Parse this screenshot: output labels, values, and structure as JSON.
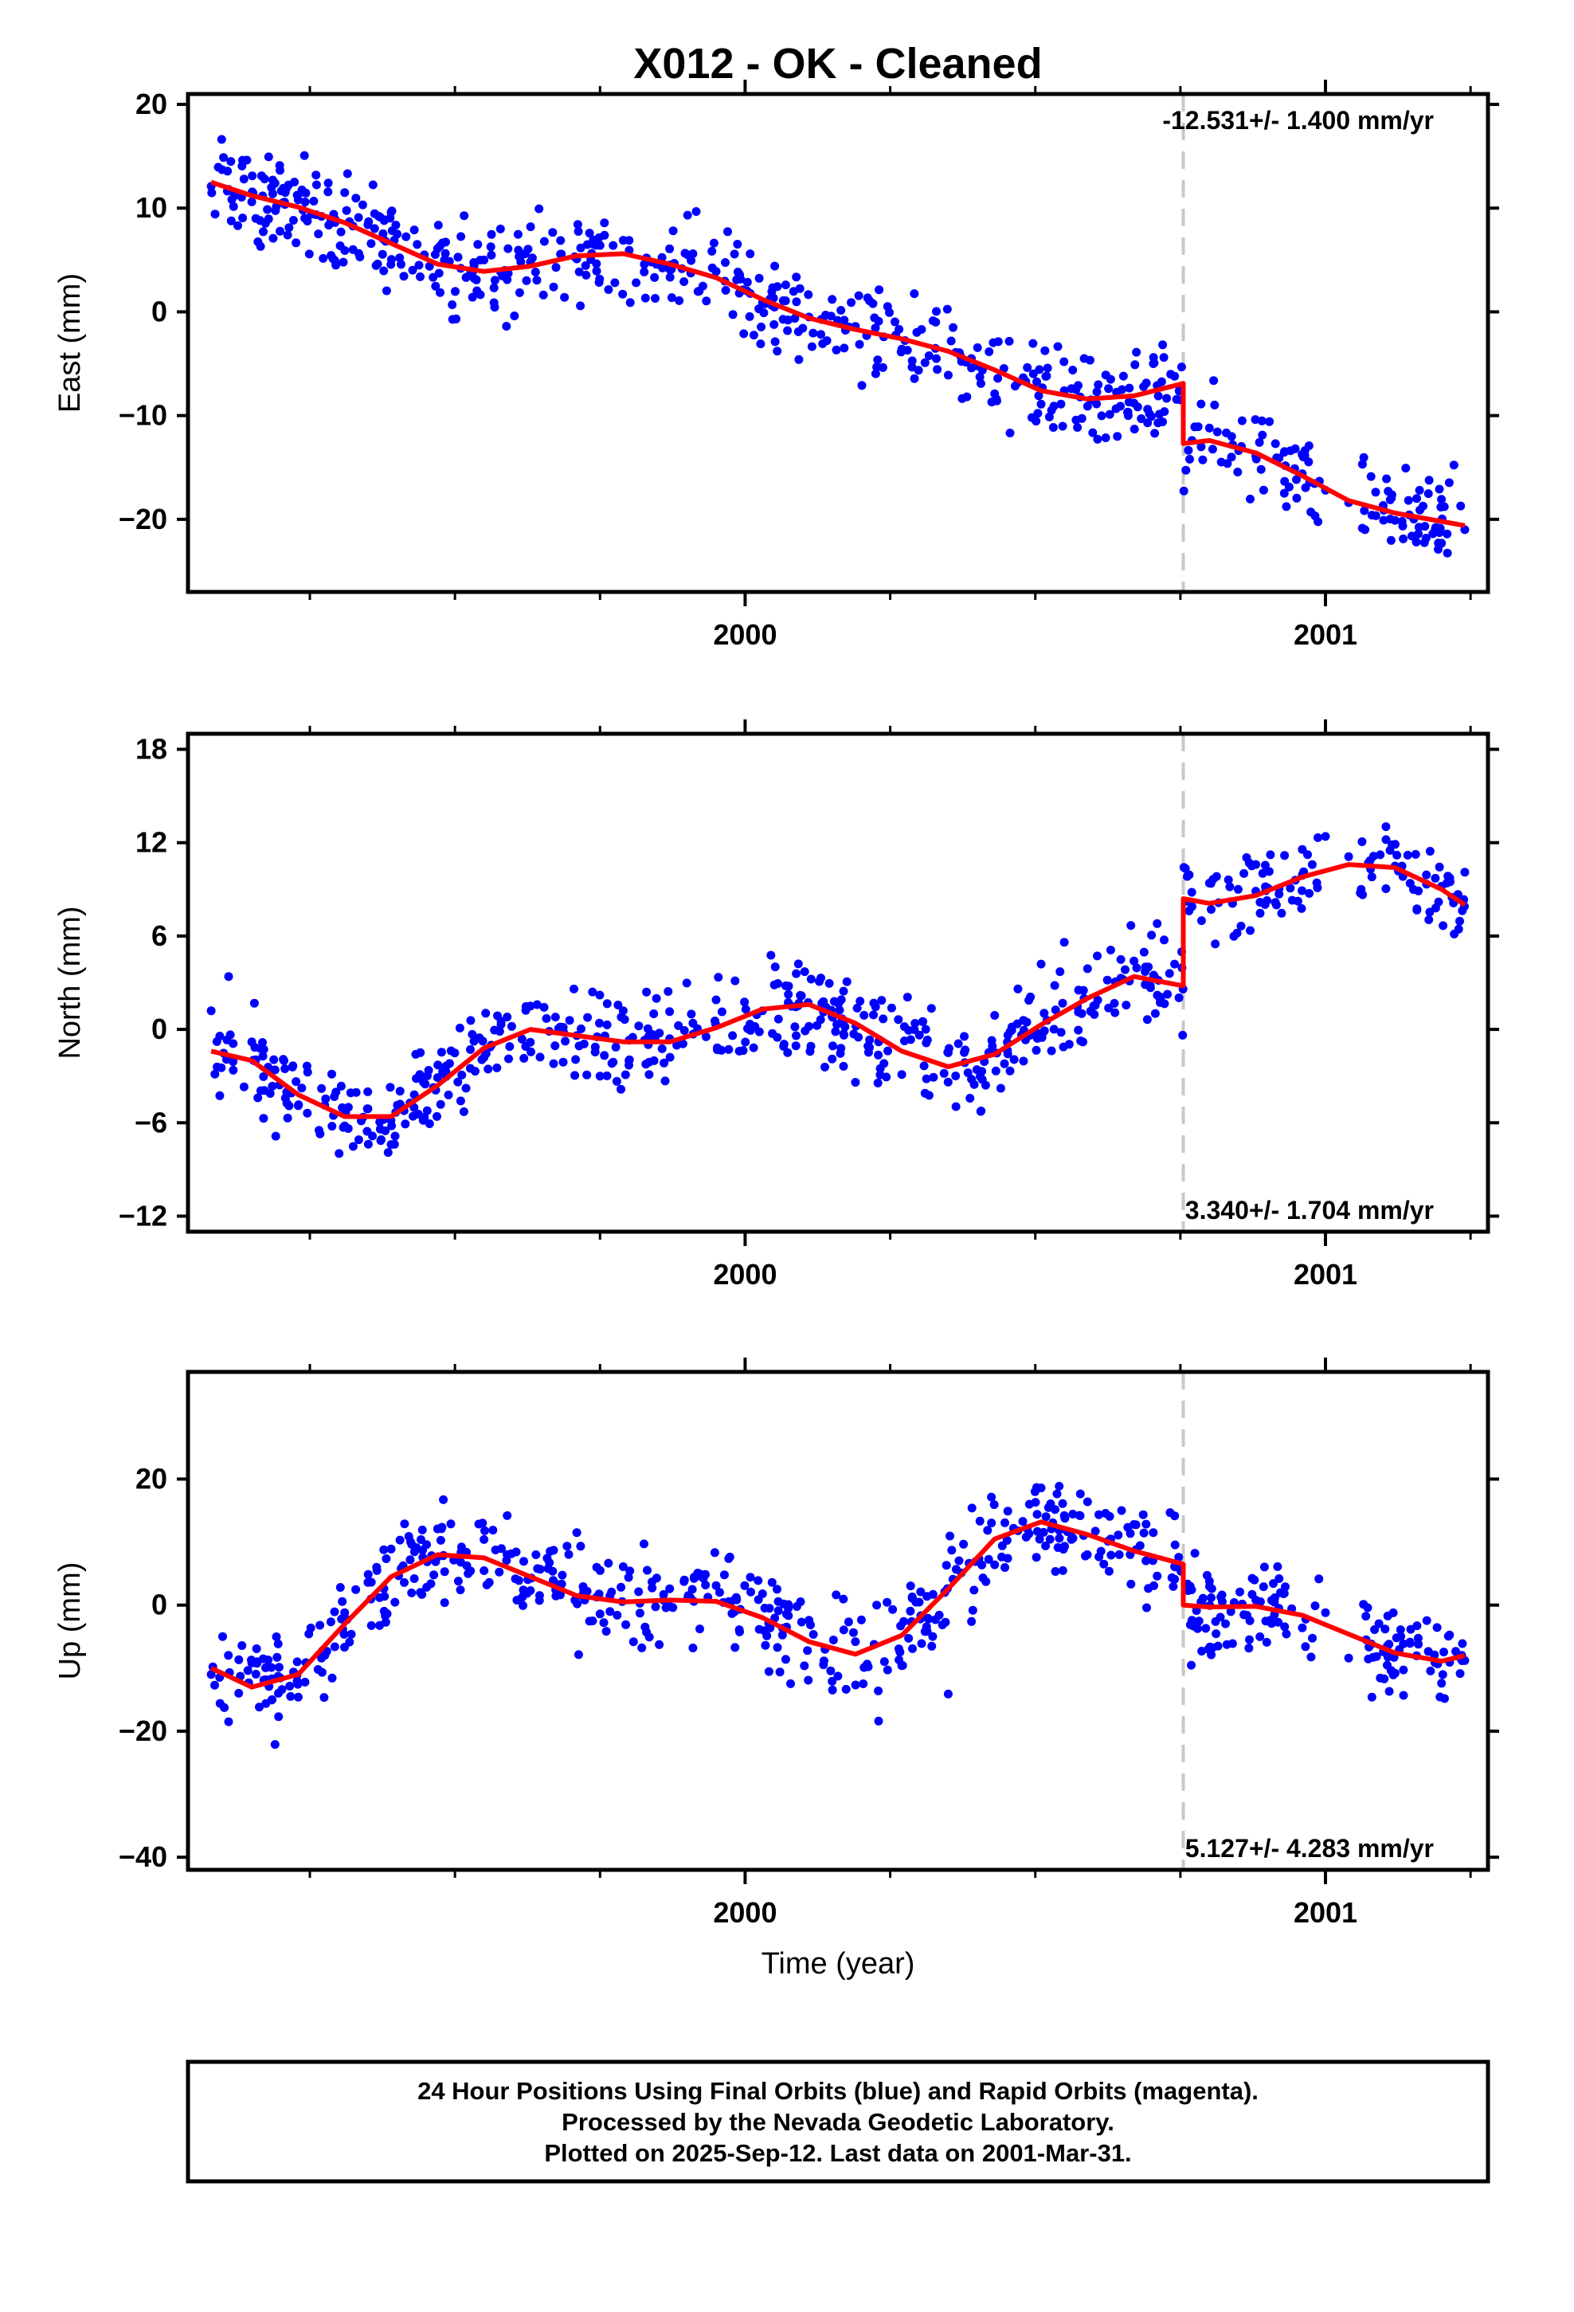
{
  "title": "X012  - OK - Cleaned",
  "chart_data": [
    {
      "type": "scatter",
      "panel": "east",
      "ylabel": "East (mm)",
      "xlabel": "",
      "xlim": [
        1999.04,
        2001.28
      ],
      "ylim": [
        -27,
        21
      ],
      "yticks": [
        20,
        10,
        0,
        -10,
        -20
      ],
      "ytick_labels": [
        "20",
        "10",
        "0",
        "−10",
        "−20"
      ],
      "xticks": [
        2000,
        2001
      ],
      "xtick_labels": [
        "2000",
        "2001"
      ],
      "rate_label": "-12.531+/- 1.400 mm/yr",
      "rate_position": "top-right",
      "offset_year": 2000.755,
      "series": [
        {
          "name": "Final Orbits",
          "color": "#0000ff",
          "style": "points",
          "x": [
            1999.08,
            1999.11,
            1999.15,
            1999.19,
            1999.23,
            1999.27,
            1999.31,
            1999.35,
            1999.39,
            1999.43,
            1999.47,
            1999.51,
            1999.55,
            1999.59,
            1999.63,
            1999.67,
            1999.71,
            1999.75,
            1999.79,
            1999.83,
            1999.87,
            1999.91,
            1999.95,
            1999.99,
            2000.03,
            2000.07,
            2000.11,
            2000.15,
            2000.19,
            2000.23,
            2000.27,
            2000.31,
            2000.35,
            2000.39,
            2000.43,
            2000.47,
            2000.51,
            2000.55,
            2000.59,
            2000.63,
            2000.67,
            2000.71,
            2000.74,
            2000.77,
            2000.8,
            2000.84,
            2000.88,
            2000.92,
            2000.96,
            2001.0,
            2001.04,
            2001.08,
            2001.12,
            2001.16,
            2001.2,
            2001.24
          ],
          "y": [
            12.1,
            11.8,
            10.6,
            12.4,
            10.8,
            9.2,
            11.5,
            8.4,
            9.6,
            7.9,
            6.1,
            4.2,
            5.0,
            3.1,
            4.8,
            2.4,
            5.1,
            6.4,
            6.9,
            5.2,
            4.1,
            5.6,
            3.9,
            1.8,
            0.9,
            2.6,
            -0.5,
            1.2,
            -1.4,
            -0.9,
            -3.6,
            -4.9,
            -6.1,
            -5.4,
            -7.9,
            -6.8,
            -8.9,
            -7.6,
            -9.1,
            -6.5,
            -8.8,
            -7.1,
            -6.2,
            -12.4,
            -11.2,
            -12.8,
            -13.9,
            -14.1,
            -15.6,
            -17.2,
            -18.4,
            -19.6,
            -20.1,
            -21.4,
            -22.3,
            -21.0
          ]
        },
        {
          "name": "Model",
          "color": "#ff0000",
          "style": "line",
          "x": [
            1999.08,
            1999.15,
            1999.23,
            1999.31,
            1999.39,
            1999.47,
            1999.55,
            1999.63,
            1999.71,
            1999.79,
            1999.87,
            1999.95,
            2000.03,
            2000.11,
            2000.19,
            2000.27,
            2000.35,
            2000.43,
            2000.51,
            2000.59,
            2000.67,
            2000.755,
            2000.755,
            2000.8,
            2000.88,
            2000.96,
            2001.04,
            2001.12,
            2001.2,
            2001.24
          ],
          "y": [
            12.5,
            11.2,
            10.1,
            8.6,
            6.6,
            4.6,
            3.9,
            4.4,
            5.4,
            5.6,
            4.6,
            3.3,
            1.2,
            -0.6,
            -1.7,
            -2.6,
            -3.8,
            -5.6,
            -7.6,
            -8.4,
            -8.1,
            -6.9,
            -12.7,
            -12.4,
            -13.6,
            -15.8,
            -18.2,
            -19.4,
            -20.2,
            -20.6
          ]
        }
      ]
    },
    {
      "type": "scatter",
      "panel": "north",
      "ylabel": "North (mm)",
      "xlabel": "",
      "xlim": [
        1999.04,
        2001.28
      ],
      "ylim": [
        -13,
        19
      ],
      "yticks": [
        18,
        12,
        6,
        0,
        -6,
        -12
      ],
      "ytick_labels": [
        "18",
        "12",
        "6",
        "0",
        "−6",
        "−12"
      ],
      "xticks": [
        2000,
        2001
      ],
      "xtick_labels": [
        "2000",
        "2001"
      ],
      "rate_label": "3.340+/- 1.704 mm/yr",
      "rate_position": "bottom-right",
      "offset_year": 2000.755,
      "series": [
        {
          "name": "Final Orbits",
          "color": "#0000ff",
          "style": "points",
          "x": [
            1999.08,
            1999.11,
            1999.15,
            1999.19,
            1999.23,
            1999.27,
            1999.31,
            1999.35,
            1999.39,
            1999.43,
            1999.47,
            1999.51,
            1999.55,
            1999.59,
            1999.63,
            1999.67,
            1999.71,
            1999.75,
            1999.79,
            1999.83,
            1999.87,
            1999.91,
            1999.95,
            1999.99,
            2000.03,
            2000.07,
            2000.11,
            2000.15,
            2000.19,
            2000.23,
            2000.27,
            2000.31,
            2000.35,
            2000.39,
            2000.43,
            2000.47,
            2000.51,
            2000.55,
            2000.59,
            2000.63,
            2000.67,
            2000.71,
            2000.74,
            2000.77,
            2000.8,
            2000.84,
            2000.88,
            2000.92,
            2000.96,
            2001.0,
            2001.04,
            2001.08,
            2001.12,
            2001.16,
            2001.2,
            2001.24
          ],
          "y": [
            1.2,
            3.4,
            -0.8,
            -2.6,
            -4.9,
            -3.8,
            -6.2,
            -5.1,
            -7.4,
            -4.2,
            -3.1,
            -4.6,
            -1.8,
            0.8,
            1.5,
            -2.2,
            -0.4,
            -3.0,
            1.2,
            2.4,
            -0.6,
            0.4,
            1.9,
            -1.4,
            1.2,
            2.8,
            0.2,
            -1.9,
            -3.4,
            -0.8,
            -2.9,
            -4.1,
            -1.5,
            -3.2,
            0.9,
            2.6,
            4.2,
            5.6,
            3.9,
            5.1,
            4.4,
            6.8,
            4.2,
            7.9,
            9.4,
            8.1,
            10.6,
            8.7,
            9.9,
            12.4,
            11.1,
            9.8,
            10.5,
            8.9,
            9.2,
            10.1
          ]
        },
        {
          "name": "Model",
          "color": "#ff0000",
          "style": "line",
          "x": [
            1999.08,
            1999.15,
            1999.23,
            1999.31,
            1999.39,
            1999.47,
            1999.55,
            1999.63,
            1999.71,
            1999.79,
            1999.87,
            1999.95,
            2000.03,
            2000.11,
            2000.19,
            2000.27,
            2000.35,
            2000.43,
            2000.51,
            2000.59,
            2000.67,
            2000.755,
            2000.755,
            2000.8,
            2000.88,
            2000.96,
            2001.04,
            2001.12,
            2001.2,
            2001.24
          ],
          "y": [
            -1.4,
            -2.0,
            -4.2,
            -5.6,
            -5.6,
            -3.6,
            -1.2,
            0.0,
            -0.4,
            -0.8,
            -0.8,
            0.1,
            1.3,
            1.6,
            0.4,
            -1.4,
            -2.4,
            -1.6,
            0.3,
            2.0,
            3.4,
            2.8,
            8.4,
            8.1,
            8.6,
            9.8,
            10.6,
            10.4,
            9.0,
            8.0
          ]
        }
      ]
    },
    {
      "type": "scatter",
      "panel": "up",
      "ylabel": "Up (mm)",
      "xlabel": "Time (year)",
      "xlim": [
        1999.04,
        2001.28
      ],
      "ylim": [
        -42,
        37
      ],
      "yticks": [
        20,
        0,
        -20,
        -40
      ],
      "ytick_labels": [
        "20",
        "0",
        "−20",
        "−40"
      ],
      "xticks": [
        2000,
        2001
      ],
      "xtick_labels": [
        "2000",
        "2001"
      ],
      "rate_label": "5.127+/- 4.283 mm/yr",
      "rate_position": "bottom-right",
      "offset_year": 2000.755,
      "series": [
        {
          "name": "Final Orbits",
          "color": "#0000ff",
          "style": "points",
          "x": [
            1999.08,
            1999.11,
            1999.15,
            1999.19,
            1999.23,
            1999.27,
            1999.31,
            1999.35,
            1999.39,
            1999.43,
            1999.47,
            1999.51,
            1999.55,
            1999.59,
            1999.63,
            1999.67,
            1999.71,
            1999.75,
            1999.79,
            1999.83,
            1999.87,
            1999.91,
            1999.95,
            1999.99,
            2000.03,
            2000.07,
            2000.11,
            2000.15,
            2000.19,
            2000.23,
            2000.27,
            2000.31,
            2000.35,
            2000.39,
            2000.43,
            2000.47,
            2000.51,
            2000.55,
            2000.59,
            2000.63,
            2000.67,
            2000.71,
            2000.74,
            2000.77,
            2000.8,
            2000.84,
            2000.88,
            2000.92,
            2000.96,
            2001.0,
            2001.04,
            2001.08,
            2001.12,
            2001.16,
            2001.2,
            2001.24
          ],
          "y": [
            -11.0,
            -18.5,
            -9.2,
            -22.1,
            -14.6,
            -8.4,
            -1.2,
            3.6,
            8.9,
            4.2,
            12.1,
            6.8,
            10.4,
            14.2,
            2.3,
            8.7,
            11.5,
            -1.4,
            6.1,
            -4.3,
            2.6,
            -6.8,
            3.1,
            -3.9,
            1.8,
            -8.6,
            -2.4,
            -12.1,
            -5.8,
            -18.4,
            -9.6,
            -4.2,
            -14.1,
            -2.6,
            6.4,
            11.8,
            18.6,
            14.2,
            16.4,
            10.5,
            12.8,
            4.6,
            6.1,
            -2.4,
            3.8,
            -6.1,
            0.8,
            4.2,
            -3.6,
            -1.2,
            -8.4,
            -14.6,
            -10.8,
            -6.2,
            -12.4,
            -8.8
          ]
        },
        {
          "name": "Model",
          "color": "#ff0000",
          "style": "line",
          "x": [
            1999.08,
            1999.15,
            1999.23,
            1999.31,
            1999.39,
            1999.47,
            1999.55,
            1999.63,
            1999.71,
            1999.79,
            1999.87,
            1999.95,
            2000.03,
            2000.11,
            2000.19,
            2000.27,
            2000.35,
            2000.43,
            2000.51,
            2000.59,
            2000.67,
            2000.755,
            2000.755,
            2000.8,
            2000.88,
            2000.96,
            2001.04,
            2001.12,
            2001.2,
            2001.24
          ],
          "y": [
            -10.0,
            -13.0,
            -11.0,
            -3.0,
            4.5,
            8.0,
            7.5,
            4.5,
            1.5,
            0.5,
            0.8,
            0.6,
            -2.0,
            -5.8,
            -7.8,
            -4.8,
            2.6,
            10.5,
            13.2,
            11.2,
            8.6,
            6.5,
            0.0,
            -0.3,
            -0.2,
            -1.6,
            -4.6,
            -7.6,
            -8.9,
            -8.0
          ]
        }
      ]
    }
  ],
  "caption": {
    "lines": [
      "24 Hour Positions Using Final Orbits (blue) and Rapid Orbits (magenta).",
      "Processed by the Nevada Geodetic Laboratory.",
      "Plotted on 2025-Sep-12. Last data on 2001-Mar-31."
    ]
  },
  "colors": {
    "points": "#0000ff",
    "model": "#ff0000",
    "offset_line": "#c8c8c8",
    "frame": "#000000"
  }
}
